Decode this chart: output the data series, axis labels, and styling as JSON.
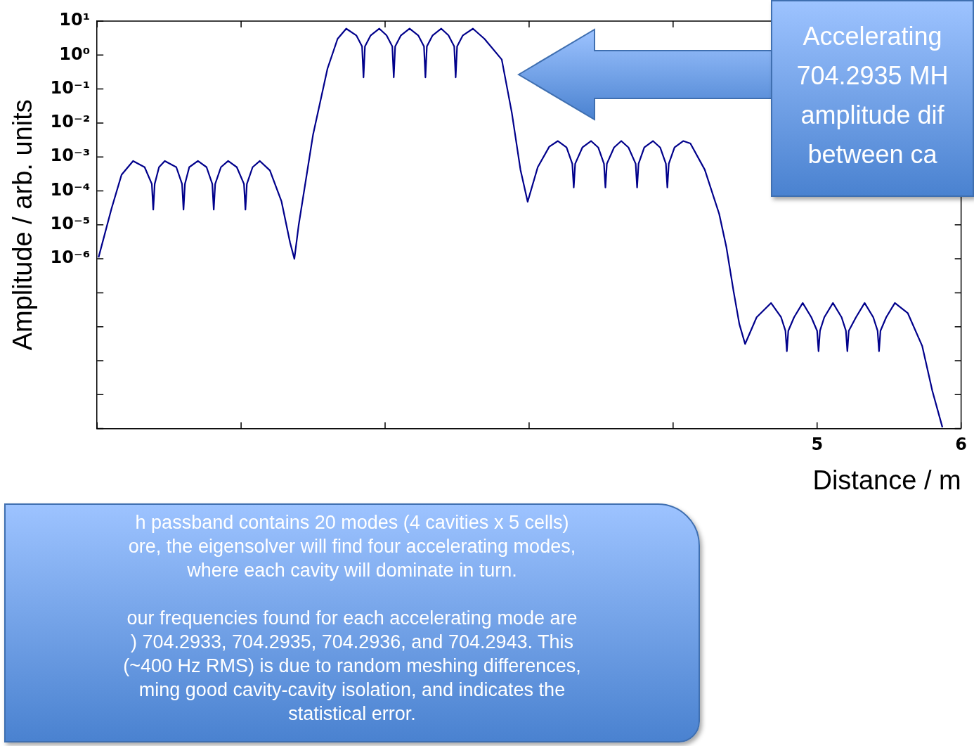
{
  "chart_data": {
    "type": "line",
    "xlabel": "Distance / m",
    "ylabel": "Amplitude / arb. units",
    "log": "y",
    "xlim": [
      0,
      6
    ],
    "xticks": [
      {
        "value": 0,
        "label": null
      },
      {
        "value": 1,
        "label": null
      },
      {
        "value": 2,
        "label": null
      },
      {
        "value": 3,
        "label": null
      },
      {
        "value": 4,
        "label": null
      },
      5,
      6
    ],
    "ylim": [
      1e-11,
      10
    ],
    "yticks": [
      {
        "value": 10,
        "label": "10¹"
      },
      {
        "value": 1,
        "label": "10⁰"
      },
      {
        "value": 0.1,
        "label": "10⁻¹"
      },
      {
        "value": 0.01,
        "label": "10⁻²"
      },
      {
        "value": 0.001,
        "label": "10⁻³"
      },
      {
        "value": 0.0001,
        "label": "10⁻⁴"
      },
      {
        "value": 1e-05,
        "label": "10⁻⁵"
      },
      {
        "value": 1e-06,
        "label": "10⁻⁶"
      },
      {
        "value": 1e-07,
        "label": null
      },
      {
        "value": 1e-08,
        "label": null
      },
      {
        "value": 1e-09,
        "label": null
      },
      {
        "value": 1e-10,
        "label": null
      },
      {
        "value": 1e-11,
        "label": null
      }
    ],
    "series": [
      {
        "color": "#00008b",
        "x": [
          0.01,
          0.1,
          0.17,
          0.25,
          0.33,
          0.38,
          0.39,
          0.4,
          0.43,
          0.47,
          0.55,
          0.59,
          0.6,
          0.61,
          0.64,
          0.7,
          0.76,
          0.8,
          0.81,
          0.82,
          0.86,
          0.91,
          0.97,
          1.02,
          1.03,
          1.04,
          1.08,
          1.13,
          1.2,
          1.28,
          1.34,
          1.37,
          1.4,
          1.5,
          1.6,
          1.67,
          1.73,
          1.8,
          1.84,
          1.85,
          1.86,
          1.9,
          1.96,
          2.01,
          2.05,
          2.06,
          2.07,
          2.11,
          2.17,
          2.23,
          2.27,
          2.28,
          2.29,
          2.33,
          2.39,
          2.44,
          2.48,
          2.49,
          2.5,
          2.54,
          2.61,
          2.69,
          2.81,
          2.88,
          2.94,
          2.99,
          3.06,
          3.14,
          3.2,
          3.26,
          3.3,
          3.31,
          3.32,
          3.37,
          3.43,
          3.48,
          3.52,
          3.53,
          3.54,
          3.59,
          3.64,
          3.69,
          3.74,
          3.75,
          3.76,
          3.8,
          3.86,
          3.91,
          3.95,
          3.96,
          3.97,
          4.01,
          4.07,
          4.12,
          4.22,
          4.32,
          4.37,
          4.42,
          4.46,
          4.5,
          4.58,
          4.68,
          4.75,
          4.78,
          4.79,
          4.8,
          4.84,
          4.9,
          4.96,
          5.0,
          5.01,
          5.02,
          5.05,
          5.11,
          5.17,
          5.2,
          5.21,
          5.22,
          5.27,
          5.33,
          5.39,
          5.42,
          5.43,
          5.44,
          5.48,
          5.54,
          5.63,
          5.73,
          5.8,
          5.87
        ],
        "values": [
          1.1e-06,
          3e-05,
          0.0003,
          0.00076,
          0.0005,
          0.00016,
          2.8e-05,
          0.00016,
          0.0005,
          0.00076,
          0.0005,
          0.00016,
          2.8e-05,
          0.00016,
          0.0005,
          0.00076,
          0.0005,
          0.00016,
          2.8e-05,
          0.00016,
          0.0005,
          0.00076,
          0.0005,
          0.00016,
          2.8e-05,
          0.00016,
          0.0005,
          0.00076,
          0.0004,
          5e-05,
          3e-06,
          1e-06,
          1e-05,
          0.0046,
          0.4,
          3,
          6,
          3.8,
          1.8,
          0.22,
          1.8,
          3.8,
          6,
          3.8,
          1.8,
          0.22,
          1.8,
          3.8,
          6,
          3.8,
          1.8,
          0.22,
          1.8,
          3.8,
          6,
          3.8,
          1.8,
          0.22,
          1.8,
          3.8,
          6,
          3,
          0.74,
          0.02,
          0.00042,
          4.8e-05,
          0.0005,
          0.002,
          0.00295,
          0.0019,
          0.00063,
          0.000126,
          0.00063,
          0.0019,
          0.00295,
          0.0019,
          0.00063,
          0.000126,
          0.00063,
          0.0019,
          0.00295,
          0.0019,
          0.00063,
          0.000126,
          0.00063,
          0.0019,
          0.00295,
          0.0019,
          0.00063,
          0.000126,
          0.00063,
          0.0019,
          0.00295,
          0.0025,
          0.00042,
          2.1e-05,
          2.2e-06,
          1.1e-07,
          1.2e-08,
          3.1e-09,
          1.9e-08,
          5e-08,
          1.9e-08,
          7.6e-09,
          1.9e-09,
          7.6e-09,
          1.9e-08,
          5e-08,
          1.9e-08,
          7.6e-09,
          1.9e-09,
          7.6e-09,
          1.9e-08,
          5e-08,
          1.9e-08,
          7.6e-09,
          1.9e-09,
          7.6e-09,
          1.9e-08,
          5e-08,
          1.9e-08,
          7.6e-09,
          1.9e-09,
          7.6e-09,
          1.9e-08,
          5e-08,
          2.5e-08,
          2.7e-09,
          1.3e-10,
          1.1e-11
        ]
      }
    ],
    "annotations": [
      "Accelerating\n704.2935 MH\namplitude dif\nbetween ca",
      "h passband contains 20 modes (4 cavities x 5 cells)\nore, the eigensolver will find four accelerating modes,\nwhere each cavity will dominate in turn.\n\nour frequencies found for each accelerating mode are\n) 704.2933, 704.2935, 704.2936, and 704.2943.  This\n(~400 Hz RMS) is due to random meshing differences,\nming good cavity-cavity isolation, and indicates the\nstatistical error."
    ]
  }
}
